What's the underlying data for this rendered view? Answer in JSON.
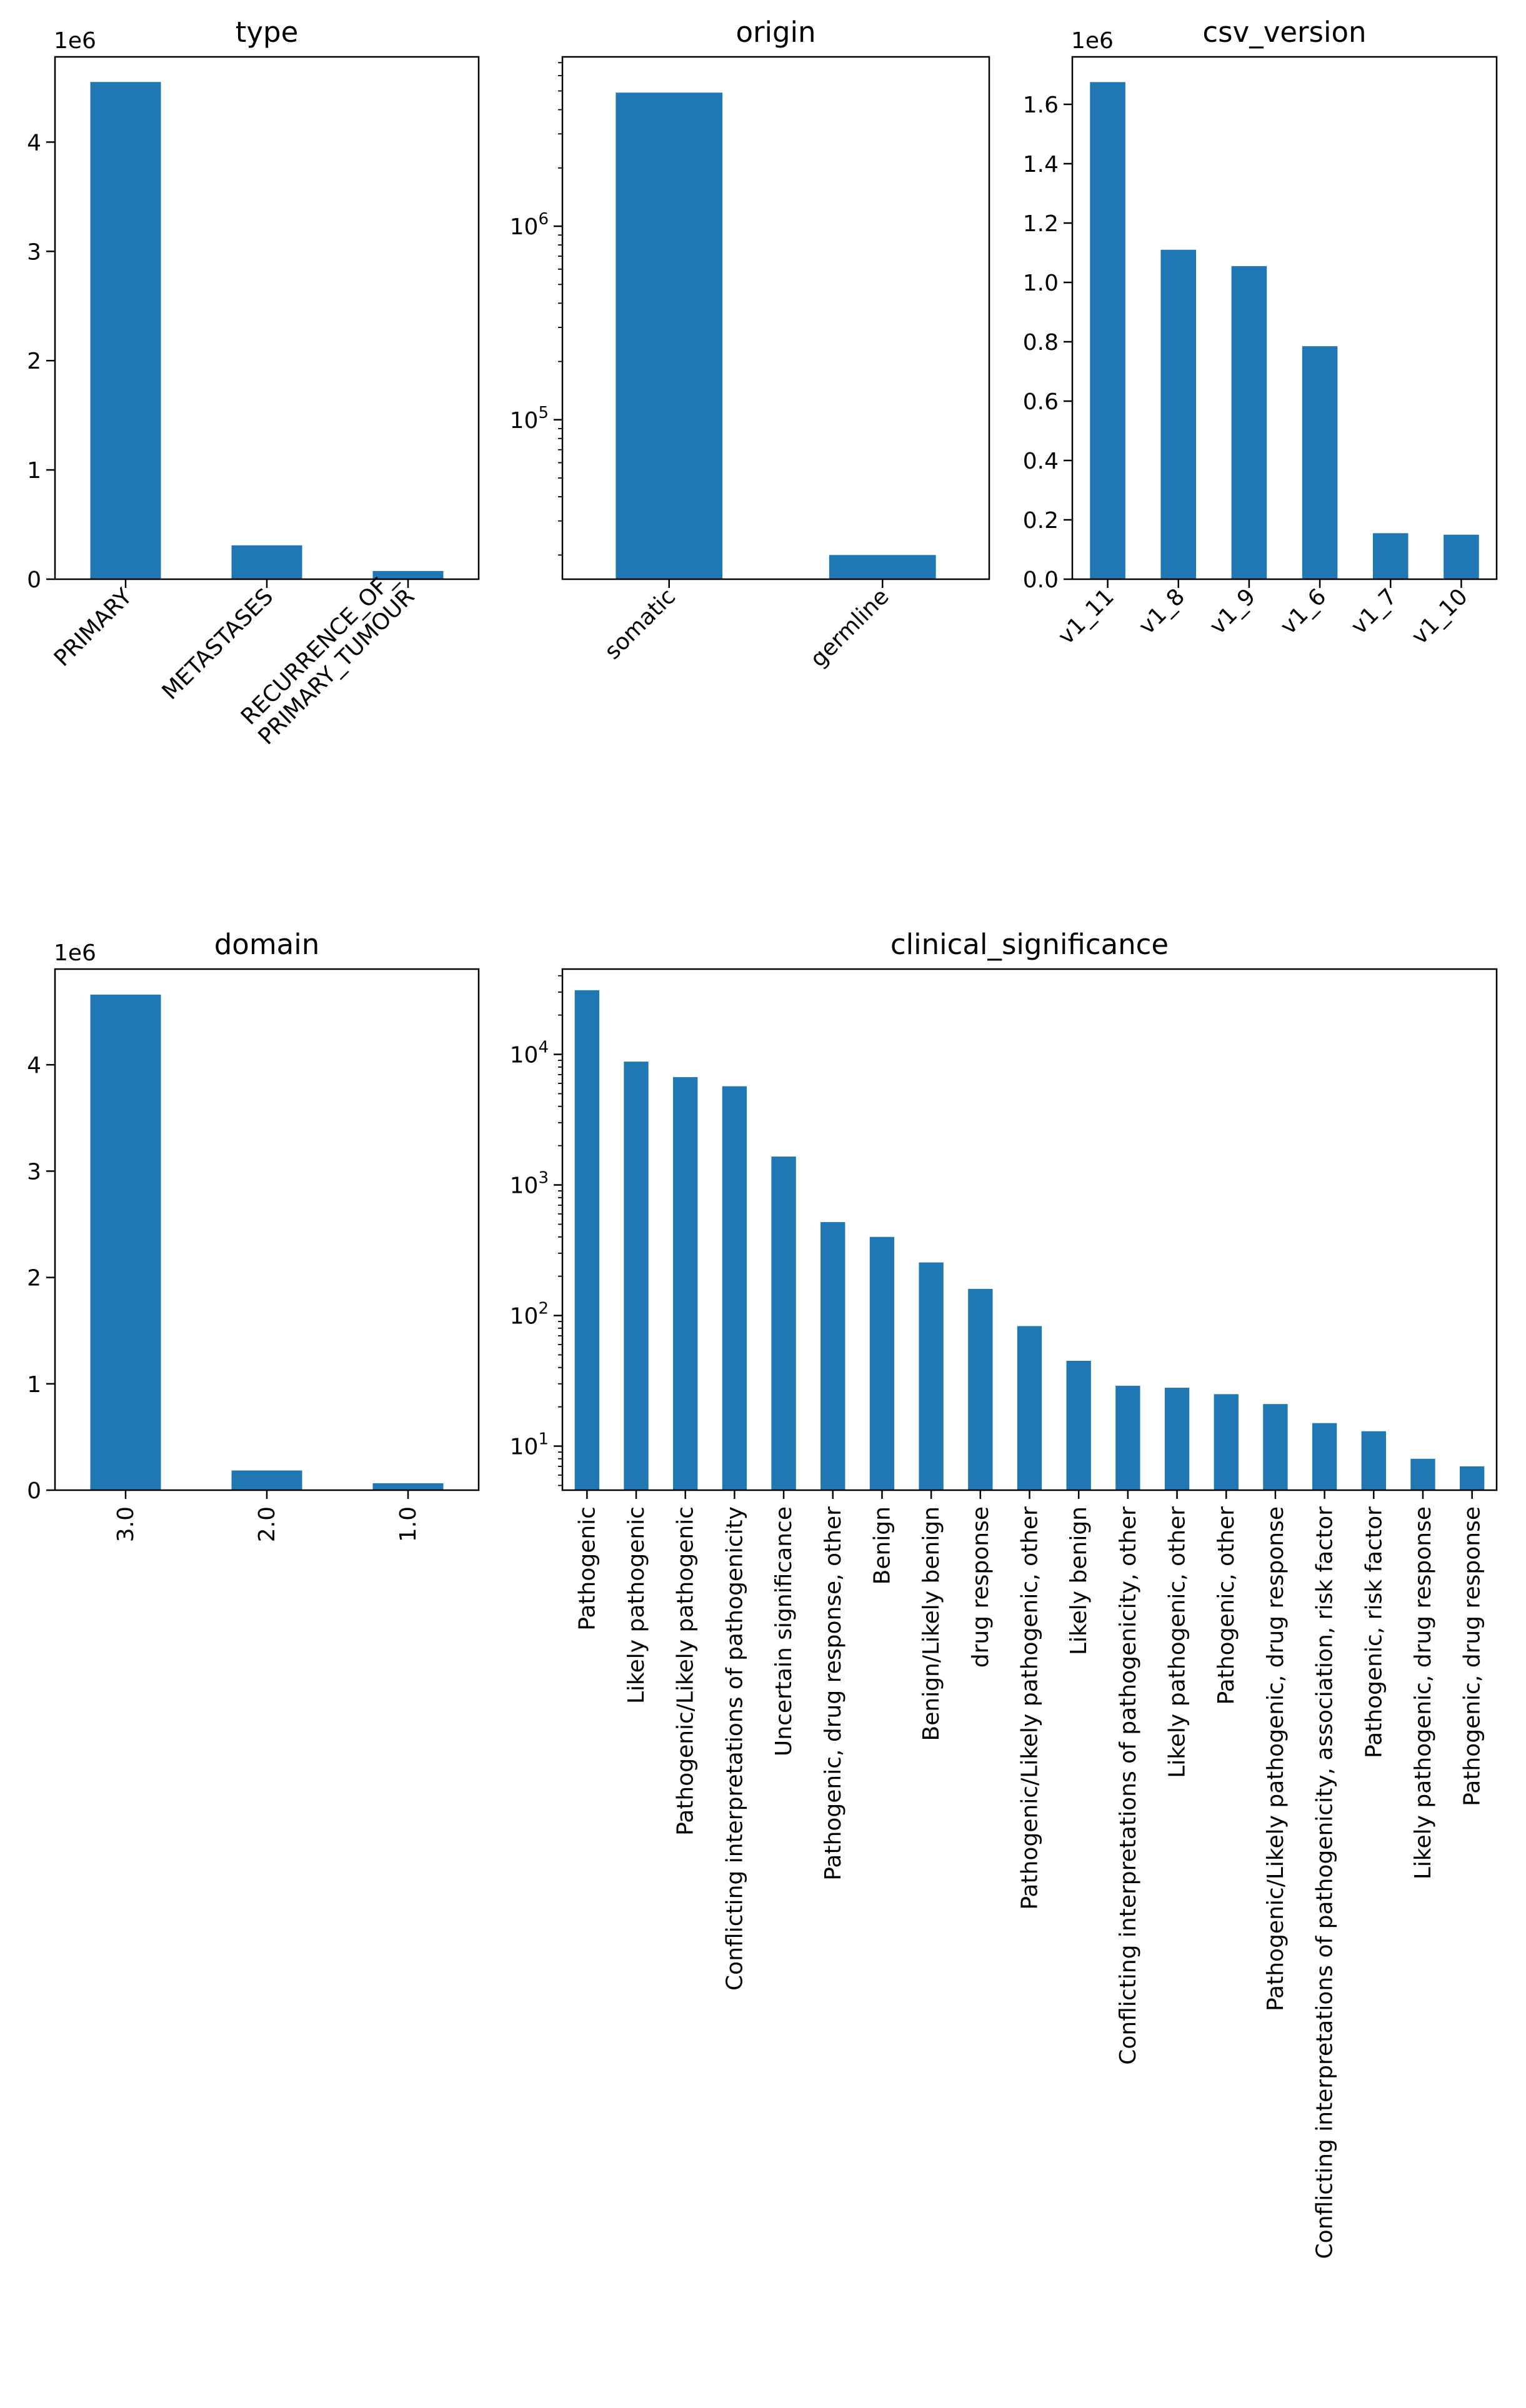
{
  "colors": {
    "bar": "#1f77b4",
    "axis": "#000000",
    "background": "#ffffff"
  },
  "chart_data": [
    {
      "id": "type",
      "type": "bar",
      "title": "type",
      "xlabel": "",
      "ylabel": "",
      "yscale": "linear",
      "y_offset_label": "1e6",
      "ylim": [
        0,
        4780000
      ],
      "yticks": [
        0,
        1000000,
        2000000,
        3000000,
        4000000
      ],
      "ytick_labels": [
        "0",
        "1",
        "2",
        "3",
        "4"
      ],
      "categories": [
        "PRIMARY",
        "METASTASES",
        "RECURRENCE_OF_\nPRIMARY_TUMOUR"
      ],
      "values": [
        4550000,
        310000,
        75000
      ],
      "xtick_rotation": 45,
      "grid": false,
      "legend": "none"
    },
    {
      "id": "origin",
      "type": "bar",
      "title": "origin",
      "xlabel": "",
      "ylabel": "",
      "yscale": "log",
      "ylim": [
        15000,
        7500000
      ],
      "yticks": [
        100000,
        1000000
      ],
      "ytick_labels": [
        "10^5",
        "10^6"
      ],
      "categories": [
        "somatic",
        "germline"
      ],
      "values": [
        4900000,
        20000
      ],
      "xtick_rotation": 45,
      "grid": false,
      "legend": "none"
    },
    {
      "id": "csv_version",
      "type": "bar",
      "title": "csv_version",
      "xlabel": "",
      "ylabel": "",
      "yscale": "linear",
      "y_offset_label": "1e6",
      "ylim": [
        0,
        1760000
      ],
      "yticks": [
        0,
        200000,
        400000,
        600000,
        800000,
        1000000,
        1200000,
        1400000,
        1600000
      ],
      "ytick_labels": [
        "0.0",
        "0.2",
        "0.4",
        "0.6",
        "0.8",
        "1.0",
        "1.2",
        "1.4",
        "1.6"
      ],
      "categories": [
        "v1_11",
        "v1_8",
        "v1_9",
        "v1_6",
        "v1_7",
        "v1_10"
      ],
      "values": [
        1675000,
        1110000,
        1055000,
        785000,
        155000,
        150000
      ],
      "xtick_rotation": 45,
      "grid": false,
      "legend": "none"
    },
    {
      "id": "domain",
      "type": "bar",
      "title": "domain",
      "xlabel": "",
      "ylabel": "",
      "yscale": "linear",
      "y_offset_label": "1e6",
      "ylim": [
        0,
        4900000
      ],
      "yticks": [
        0,
        1000000,
        2000000,
        3000000,
        4000000
      ],
      "ytick_labels": [
        "0",
        "1",
        "2",
        "3",
        "4"
      ],
      "categories": [
        "3.0",
        "2.0",
        "1.0"
      ],
      "values": [
        4660000,
        185000,
        65000
      ],
      "xtick_rotation": 90,
      "grid": false,
      "legend": "none"
    },
    {
      "id": "clinical_significance",
      "type": "bar",
      "title": "clinical_significance",
      "xlabel": "",
      "ylabel": "",
      "yscale": "log",
      "ylim": [
        4.6,
        45000
      ],
      "yticks": [
        10,
        100,
        1000,
        10000
      ],
      "ytick_labels": [
        "10^1",
        "10^2",
        "10^3",
        "10^4"
      ],
      "categories": [
        "Pathogenic",
        "Likely pathogenic",
        "Pathogenic/Likely pathogenic",
        "Conflicting interpretations of pathogenicity",
        "Uncertain significance",
        "Pathogenic, drug response, other",
        "Benign",
        "Benign/Likely benign",
        "drug response",
        "Pathogenic/Likely pathogenic, other",
        "Likely benign",
        "Conflicting interpretations of pathogenicity, other",
        "Likely pathogenic, other",
        "Pathogenic, other",
        "Pathogenic/Likely pathogenic, drug response",
        "Conflicting interpretations of pathogenicity, association, risk factor",
        "Pathogenic, risk factor",
        "Likely pathogenic, drug response",
        "Pathogenic, drug response"
      ],
      "values": [
        31000,
        8800,
        6700,
        5700,
        1650,
        520,
        400,
        255,
        160,
        83,
        45,
        29,
        28,
        25,
        21,
        15,
        13,
        8,
        7
      ],
      "xtick_rotation": 90,
      "grid": false,
      "legend": "none"
    }
  ]
}
